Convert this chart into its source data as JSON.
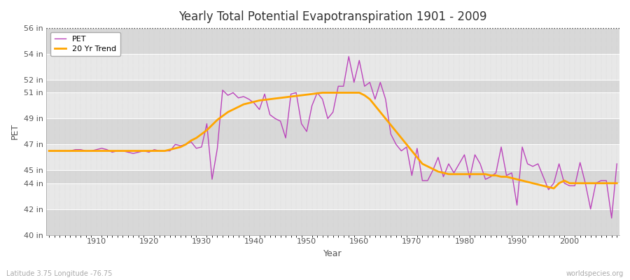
{
  "title": "Yearly Total Potential Evapotranspiration 1901 - 2009",
  "xlabel": "Year",
  "ylabel": "PET",
  "footer_left": "Latitude 3.75 Longitude -76.75",
  "footer_right": "worldspecies.org",
  "ylim_min": 40,
  "ylim_max": 56,
  "background_color": "#ffffff",
  "plot_bg_color": "#e8e8e8",
  "band_light": "#e8e8e8",
  "band_dark": "#d8d8d8",
  "grid_color": "#ffffff",
  "pet_color": "#bb44bb",
  "trend_color": "#FFA500",
  "dotted_line_color": "#333333",
  "yticks": [
    40,
    42,
    44,
    45,
    47,
    49,
    51,
    52,
    54,
    56
  ],
  "years": [
    1901,
    1902,
    1903,
    1904,
    1905,
    1906,
    1907,
    1908,
    1909,
    1910,
    1911,
    1912,
    1913,
    1914,
    1915,
    1916,
    1917,
    1918,
    1919,
    1920,
    1921,
    1922,
    1923,
    1924,
    1925,
    1926,
    1927,
    1928,
    1929,
    1930,
    1931,
    1932,
    1933,
    1934,
    1935,
    1936,
    1937,
    1938,
    1939,
    1940,
    1941,
    1942,
    1943,
    1944,
    1945,
    1946,
    1947,
    1948,
    1949,
    1950,
    1951,
    1952,
    1953,
    1954,
    1955,
    1956,
    1957,
    1958,
    1959,
    1960,
    1961,
    1962,
    1963,
    1964,
    1965,
    1966,
    1967,
    1968,
    1969,
    1970,
    1971,
    1972,
    1973,
    1974,
    1975,
    1976,
    1977,
    1978,
    1979,
    1980,
    1981,
    1982,
    1983,
    1984,
    1985,
    1986,
    1987,
    1988,
    1989,
    1990,
    1991,
    1992,
    1993,
    1994,
    1995,
    1996,
    1997,
    1998,
    1999,
    2000,
    2001,
    2002,
    2003,
    2004,
    2005,
    2006,
    2007,
    2008,
    2009
  ],
  "pet_values": [
    46.5,
    46.5,
    46.5,
    46.5,
    46.5,
    46.6,
    46.6,
    46.5,
    46.5,
    46.6,
    46.7,
    46.6,
    46.4,
    46.5,
    46.5,
    46.4,
    46.3,
    46.4,
    46.5,
    46.4,
    46.6,
    46.5,
    46.5,
    46.5,
    47.0,
    46.9,
    47.0,
    47.2,
    46.7,
    46.8,
    48.6,
    44.3,
    46.7,
    51.2,
    50.8,
    51.0,
    50.6,
    50.7,
    50.5,
    50.2,
    49.7,
    50.9,
    49.3,
    49.0,
    48.8,
    47.5,
    50.9,
    51.0,
    48.6,
    48.0,
    50.0,
    51.0,
    50.5,
    49.0,
    49.5,
    51.5,
    51.5,
    53.8,
    51.8,
    53.5,
    51.5,
    51.8,
    50.5,
    51.8,
    50.5,
    47.8,
    47.0,
    46.5,
    46.8,
    44.6,
    46.7,
    44.2,
    44.2,
    45.0,
    46.0,
    44.5,
    45.5,
    44.8,
    45.5,
    46.2,
    44.4,
    46.2,
    45.5,
    44.3,
    44.5,
    44.8,
    46.8,
    44.6,
    44.8,
    42.3,
    46.8,
    45.5,
    45.3,
    45.5,
    44.5,
    43.5,
    44.0,
    45.5,
    44.0,
    43.8,
    43.8,
    45.6,
    44.0,
    42.0,
    44.0,
    44.2,
    44.2,
    41.3,
    45.5
  ],
  "trend_values": [
    46.5,
    46.5,
    46.5,
    46.5,
    46.5,
    46.5,
    46.5,
    46.5,
    46.5,
    46.5,
    46.5,
    46.5,
    46.5,
    46.5,
    46.5,
    46.5,
    46.5,
    46.5,
    46.5,
    46.5,
    46.5,
    46.5,
    46.5,
    46.6,
    46.7,
    46.8,
    47.0,
    47.3,
    47.5,
    47.8,
    48.1,
    48.5,
    48.9,
    49.2,
    49.5,
    49.7,
    49.9,
    50.1,
    50.2,
    50.3,
    50.4,
    50.45,
    50.5,
    50.55,
    50.6,
    50.65,
    50.7,
    50.75,
    50.8,
    50.85,
    50.9,
    50.95,
    51.0,
    51.0,
    51.0,
    51.0,
    51.0,
    51.0,
    51.0,
    51.0,
    50.8,
    50.5,
    50.0,
    49.5,
    49.0,
    48.5,
    48.0,
    47.5,
    47.0,
    46.5,
    46.0,
    45.5,
    45.3,
    45.1,
    44.9,
    44.8,
    44.7,
    44.7,
    44.7,
    44.7,
    44.7,
    44.7,
    44.7,
    44.7,
    44.6,
    44.6,
    44.5,
    44.5,
    44.4,
    44.3,
    44.2,
    44.1,
    44.0,
    43.9,
    43.8,
    43.7,
    43.6,
    44.0,
    44.2,
    44.0,
    44.0,
    44.0,
    44.0,
    44.0,
    44.0,
    44.0,
    44.0,
    44.0,
    44.0
  ]
}
